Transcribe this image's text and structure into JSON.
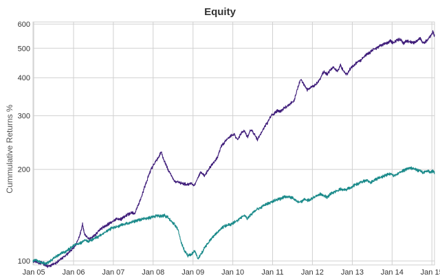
{
  "chart_data": {
    "type": "line",
    "title": "Equity",
    "xlabel": "",
    "ylabel": "Cummulative Returns %",
    "y_scale": "log",
    "ylim": [
      97,
      610
    ],
    "xlim": [
      "2004-12-25",
      "2015-01-25"
    ],
    "grid": true,
    "legend": "none",
    "x_ticks": [
      {
        "date": "2005-01-01",
        "label": "Jan 05"
      },
      {
        "date": "2006-01-01",
        "label": "Jan 06"
      },
      {
        "date": "2007-01-01",
        "label": "Jan 07"
      },
      {
        "date": "2008-01-01",
        "label": "Jan 08"
      },
      {
        "date": "2009-01-01",
        "label": "Jan 09"
      },
      {
        "date": "2010-01-01",
        "label": "Jan 10"
      },
      {
        "date": "2011-01-01",
        "label": "Jan 11"
      },
      {
        "date": "2012-01-01",
        "label": "Jan 12"
      },
      {
        "date": "2013-01-01",
        "label": "Jan 13"
      },
      {
        "date": "2014-01-01",
        "label": "Jan 14"
      },
      {
        "date": "2015-01-01",
        "label": "Jan 15"
      }
    ],
    "y_ticks": [
      100,
      200,
      300,
      400,
      500,
      600
    ],
    "series": [
      {
        "color": "#3f1d7a",
        "points": [
          [
            "2004-12-25",
            100
          ],
          [
            "2005-01-15",
            100
          ],
          [
            "2005-02-15",
            98
          ],
          [
            "2005-03-15",
            99
          ],
          [
            "2005-04-15",
            97
          ],
          [
            "2005-05-15",
            96
          ],
          [
            "2005-06-15",
            97
          ],
          [
            "2005-07-15",
            98
          ],
          [
            "2005-08-15",
            100
          ],
          [
            "2005-09-15",
            102
          ],
          [
            "2005-10-15",
            104
          ],
          [
            "2005-11-15",
            106
          ],
          [
            "2005-12-15",
            109
          ],
          [
            "2006-01-15",
            112
          ],
          [
            "2006-02-15",
            118
          ],
          [
            "2006-03-10",
            125
          ],
          [
            "2006-03-25",
            132
          ],
          [
            "2006-04-10",
            123
          ],
          [
            "2006-05-15",
            118
          ],
          [
            "2006-06-15",
            119
          ],
          [
            "2006-07-15",
            121
          ],
          [
            "2006-08-15",
            125
          ],
          [
            "2006-09-15",
            128
          ],
          [
            "2006-10-15",
            130
          ],
          [
            "2006-11-15",
            132
          ],
          [
            "2006-12-15",
            134
          ],
          [
            "2007-01-15",
            136
          ],
          [
            "2007-02-15",
            138
          ],
          [
            "2007-03-15",
            137
          ],
          [
            "2007-04-15",
            140
          ],
          [
            "2007-05-15",
            142
          ],
          [
            "2007-06-15",
            144
          ],
          [
            "2007-07-15",
            143
          ],
          [
            "2007-08-15",
            152
          ],
          [
            "2007-09-15",
            162
          ],
          [
            "2007-10-15",
            175
          ],
          [
            "2007-11-15",
            188
          ],
          [
            "2007-12-15",
            200
          ],
          [
            "2008-01-15",
            210
          ],
          [
            "2008-02-15",
            218
          ],
          [
            "2008-03-15",
            228
          ],
          [
            "2008-04-15",
            212
          ],
          [
            "2008-05-15",
            200
          ],
          [
            "2008-06-15",
            192
          ],
          [
            "2008-07-15",
            183
          ],
          [
            "2008-08-15",
            181
          ],
          [
            "2008-09-15",
            180
          ],
          [
            "2008-10-15",
            179
          ],
          [
            "2008-11-15",
            178
          ],
          [
            "2008-12-15",
            180
          ],
          [
            "2009-01-10",
            176
          ],
          [
            "2009-02-15",
            188
          ],
          [
            "2009-03-15",
            196
          ],
          [
            "2009-04-15",
            190
          ],
          [
            "2009-05-15",
            198
          ],
          [
            "2009-06-15",
            205
          ],
          [
            "2009-07-15",
            212
          ],
          [
            "2009-08-15",
            220
          ],
          [
            "2009-09-15",
            238
          ],
          [
            "2009-10-15",
            245
          ],
          [
            "2009-11-15",
            252
          ],
          [
            "2009-12-15",
            258
          ],
          [
            "2010-01-15",
            260
          ],
          [
            "2010-02-15",
            250
          ],
          [
            "2010-03-15",
            262
          ],
          [
            "2010-04-15",
            268
          ],
          [
            "2010-05-15",
            255
          ],
          [
            "2010-06-15",
            270
          ],
          [
            "2010-07-15",
            262
          ],
          [
            "2010-08-15",
            250
          ],
          [
            "2010-09-15",
            262
          ],
          [
            "2010-10-15",
            275
          ],
          [
            "2010-11-15",
            285
          ],
          [
            "2010-12-15",
            300
          ],
          [
            "2011-01-15",
            305
          ],
          [
            "2011-02-15",
            312
          ],
          [
            "2011-03-15",
            310
          ],
          [
            "2011-04-15",
            318
          ],
          [
            "2011-05-15",
            322
          ],
          [
            "2011-06-15",
            330
          ],
          [
            "2011-07-15",
            335
          ],
          [
            "2011-08-15",
            365
          ],
          [
            "2011-09-15",
            398
          ],
          [
            "2011-10-15",
            380
          ],
          [
            "2011-11-15",
            365
          ],
          [
            "2011-12-15",
            372
          ],
          [
            "2012-01-15",
            375
          ],
          [
            "2012-02-15",
            385
          ],
          [
            "2012-03-15",
            398
          ],
          [
            "2012-04-15",
            420
          ],
          [
            "2012-05-15",
            410
          ],
          [
            "2012-06-15",
            425
          ],
          [
            "2012-07-15",
            432
          ],
          [
            "2012-08-15",
            418
          ],
          [
            "2012-09-15",
            440
          ],
          [
            "2012-10-15",
            418
          ],
          [
            "2012-11-15",
            410
          ],
          [
            "2012-12-15",
            430
          ],
          [
            "2013-01-15",
            440
          ],
          [
            "2013-02-15",
            450
          ],
          [
            "2013-03-15",
            455
          ],
          [
            "2013-04-15",
            468
          ],
          [
            "2013-05-15",
            480
          ],
          [
            "2013-06-15",
            485
          ],
          [
            "2013-07-15",
            495
          ],
          [
            "2013-08-15",
            500
          ],
          [
            "2013-09-15",
            510
          ],
          [
            "2013-10-15",
            515
          ],
          [
            "2013-11-15",
            520
          ],
          [
            "2013-12-15",
            528
          ],
          [
            "2014-01-15",
            520
          ],
          [
            "2014-02-15",
            532
          ],
          [
            "2014-03-15",
            535
          ],
          [
            "2014-04-15",
            520
          ],
          [
            "2014-05-15",
            528
          ],
          [
            "2014-06-15",
            525
          ],
          [
            "2014-07-15",
            520
          ],
          [
            "2014-08-15",
            530
          ],
          [
            "2014-09-15",
            540
          ],
          [
            "2014-10-15",
            518
          ],
          [
            "2014-11-15",
            530
          ],
          [
            "2014-12-15",
            545
          ],
          [
            "2015-01-10",
            565
          ],
          [
            "2015-01-25",
            548
          ]
        ]
      },
      {
        "color": "#1a8a8a",
        "points": [
          [
            "2004-12-25",
            100
          ],
          [
            "2005-01-15",
            101
          ],
          [
            "2005-02-15",
            100
          ],
          [
            "2005-03-15",
            99
          ],
          [
            "2005-04-15",
            98
          ],
          [
            "2005-05-15",
            99
          ],
          [
            "2005-06-15",
            101
          ],
          [
            "2005-07-15",
            103
          ],
          [
            "2005-08-15",
            104
          ],
          [
            "2005-09-15",
            106
          ],
          [
            "2005-10-15",
            107
          ],
          [
            "2005-11-15",
            109
          ],
          [
            "2005-12-15",
            111
          ],
          [
            "2006-01-15",
            113
          ],
          [
            "2006-02-15",
            114
          ],
          [
            "2006-03-15",
            115
          ],
          [
            "2006-04-15",
            117
          ],
          [
            "2006-05-15",
            116
          ],
          [
            "2006-06-15",
            117
          ],
          [
            "2006-07-15",
            119
          ],
          [
            "2006-08-15",
            120
          ],
          [
            "2006-09-15",
            122
          ],
          [
            "2006-10-15",
            124
          ],
          [
            "2006-11-15",
            126
          ],
          [
            "2006-12-15",
            128
          ],
          [
            "2007-01-15",
            129
          ],
          [
            "2007-02-15",
            130
          ],
          [
            "2007-03-15",
            131
          ],
          [
            "2007-04-15",
            132
          ],
          [
            "2007-05-15",
            133
          ],
          [
            "2007-06-15",
            134
          ],
          [
            "2007-07-15",
            135
          ],
          [
            "2007-08-15",
            136
          ],
          [
            "2007-09-15",
            137
          ],
          [
            "2007-10-15",
            138
          ],
          [
            "2007-11-15",
            138
          ],
          [
            "2007-12-15",
            139
          ],
          [
            "2008-01-15",
            140
          ],
          [
            "2008-02-15",
            141
          ],
          [
            "2008-03-15",
            140
          ],
          [
            "2008-04-15",
            141
          ],
          [
            "2008-05-15",
            139
          ],
          [
            "2008-06-15",
            135
          ],
          [
            "2008-07-15",
            132
          ],
          [
            "2008-08-15",
            127
          ],
          [
            "2008-09-15",
            115
          ],
          [
            "2008-10-15",
            108
          ],
          [
            "2008-11-15",
            104
          ],
          [
            "2008-12-15",
            105
          ],
          [
            "2009-01-15",
            108
          ],
          [
            "2009-02-15",
            102
          ],
          [
            "2009-03-15",
            105
          ],
          [
            "2009-04-15",
            110
          ],
          [
            "2009-05-15",
            114
          ],
          [
            "2009-06-15",
            118
          ],
          [
            "2009-07-15",
            121
          ],
          [
            "2009-08-15",
            124
          ],
          [
            "2009-09-15",
            128
          ],
          [
            "2009-10-15",
            130
          ],
          [
            "2009-11-15",
            131
          ],
          [
            "2009-12-15",
            132
          ],
          [
            "2010-01-15",
            134
          ],
          [
            "2010-02-15",
            136
          ],
          [
            "2010-03-15",
            139
          ],
          [
            "2010-04-15",
            141
          ],
          [
            "2010-05-15",
            138
          ],
          [
            "2010-06-15",
            142
          ],
          [
            "2010-07-15",
            145
          ],
          [
            "2010-08-15",
            148
          ],
          [
            "2010-09-15",
            150
          ],
          [
            "2010-10-15",
            152
          ],
          [
            "2010-11-15",
            154
          ],
          [
            "2010-12-15",
            156
          ],
          [
            "2011-01-15",
            158
          ],
          [
            "2011-02-15",
            159
          ],
          [
            "2011-03-15",
            160
          ],
          [
            "2011-04-15",
            162
          ],
          [
            "2011-05-15",
            163
          ],
          [
            "2011-06-15",
            162
          ],
          [
            "2011-07-15",
            160
          ],
          [
            "2011-08-15",
            157
          ],
          [
            "2011-09-15",
            156
          ],
          [
            "2011-10-15",
            159
          ],
          [
            "2011-11-15",
            158
          ],
          [
            "2011-12-15",
            159
          ],
          [
            "2012-01-15",
            162
          ],
          [
            "2012-02-15",
            164
          ],
          [
            "2012-03-15",
            166
          ],
          [
            "2012-04-15",
            164
          ],
          [
            "2012-05-15",
            162
          ],
          [
            "2012-06-15",
            166
          ],
          [
            "2012-07-15",
            168
          ],
          [
            "2012-08-15",
            170
          ],
          [
            "2012-09-15",
            172
          ],
          [
            "2012-10-15",
            171
          ],
          [
            "2012-11-15",
            172
          ],
          [
            "2012-12-15",
            174
          ],
          [
            "2013-01-15",
            177
          ],
          [
            "2013-02-15",
            179
          ],
          [
            "2013-03-15",
            181
          ],
          [
            "2013-04-15",
            183
          ],
          [
            "2013-05-15",
            184
          ],
          [
            "2013-06-15",
            181
          ],
          [
            "2013-07-15",
            184
          ],
          [
            "2013-08-15",
            186
          ],
          [
            "2013-09-15",
            188
          ],
          [
            "2013-10-15",
            190
          ],
          [
            "2013-11-15",
            192
          ],
          [
            "2013-12-15",
            193
          ],
          [
            "2014-01-15",
            191
          ],
          [
            "2014-02-15",
            193
          ],
          [
            "2014-03-15",
            196
          ],
          [
            "2014-04-15",
            198
          ],
          [
            "2014-05-15",
            200
          ],
          [
            "2014-06-15",
            202
          ],
          [
            "2014-07-15",
            201
          ],
          [
            "2014-08-15",
            199
          ],
          [
            "2014-09-15",
            197
          ],
          [
            "2014-10-15",
            195
          ],
          [
            "2014-11-15",
            198
          ],
          [
            "2014-12-15",
            196
          ],
          [
            "2015-01-15",
            197
          ],
          [
            "2015-01-25",
            194
          ]
        ]
      }
    ]
  }
}
